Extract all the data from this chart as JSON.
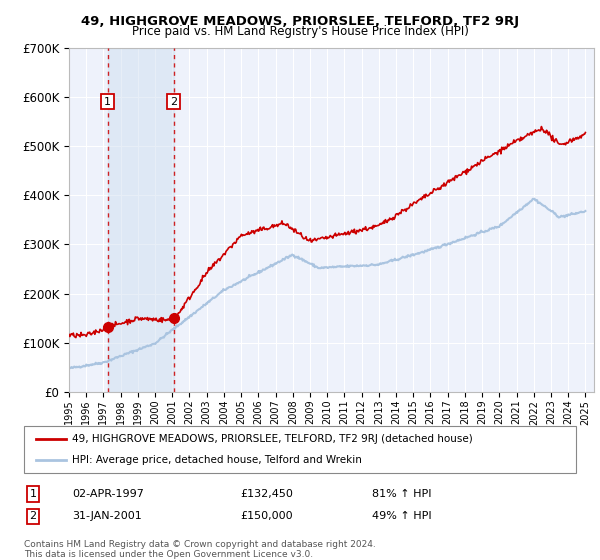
{
  "title": "49, HIGHGROVE MEADOWS, PRIORSLEE, TELFORD, TF2 9RJ",
  "subtitle": "Price paid vs. HM Land Registry's House Price Index (HPI)",
  "legend_label_red": "49, HIGHGROVE MEADOWS, PRIORSLEE, TELFORD, TF2 9RJ (detached house)",
  "legend_label_blue": "HPI: Average price, detached house, Telford and Wrekin",
  "sale1_date": "02-APR-1997",
  "sale1_price": 132450,
  "sale1_label": "81% ↑ HPI",
  "sale1_x": 1997.25,
  "sale2_date": "31-JAN-2001",
  "sale2_price": 150000,
  "sale2_label": "49% ↑ HPI",
  "sale2_x": 2001.08,
  "footnote1": "Contains HM Land Registry data © Crown copyright and database right 2024.",
  "footnote2": "This data is licensed under the Open Government Licence v3.0.",
  "ylim": [
    0,
    700000
  ],
  "xlim_start": 1995.0,
  "xlim_end": 2025.5,
  "background_color": "#eef2fb",
  "grid_color": "#ffffff",
  "red_color": "#cc0000",
  "blue_color": "#aac4e0",
  "span_color": "#d0dff0"
}
